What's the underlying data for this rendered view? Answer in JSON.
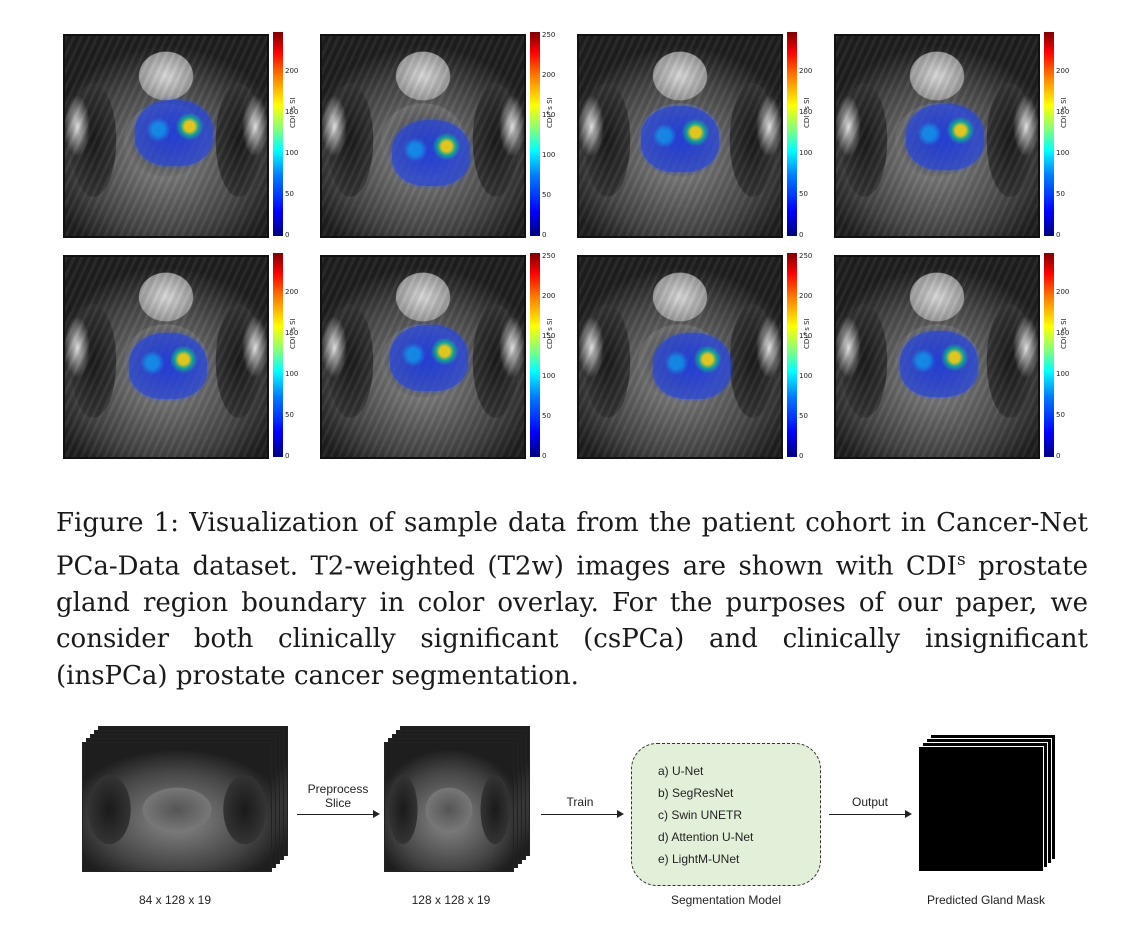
{
  "colorbar": {
    "label": "CDI^s SI",
    "gradient_colors": [
      "#00007f",
      "#0000ff",
      "#00ffff",
      "#ffff00",
      "#ff0000",
      "#7f0000"
    ]
  },
  "panels": [
    {
      "ticks": [
        "200",
        "150",
        "100",
        "50",
        "0"
      ]
    },
    {
      "ticks": [
        "250",
        "200",
        "150",
        "100",
        "50",
        "0"
      ]
    },
    {
      "ticks": [
        "200",
        "150",
        "100",
        "50",
        "0"
      ]
    },
    {
      "ticks": [
        "200",
        "150",
        "100",
        "50",
        "0"
      ]
    },
    {
      "ticks": [
        "200",
        "150",
        "100",
        "50",
        "0"
      ]
    },
    {
      "ticks": [
        "250",
        "200",
        "150",
        "100",
        "50",
        "0"
      ]
    },
    {
      "ticks": [
        "250",
        "200",
        "150",
        "100",
        "50",
        "0"
      ]
    },
    {
      "ticks": [
        "200",
        "150",
        "100",
        "50",
        "0"
      ]
    }
  ],
  "caption": {
    "prefix": "Figure 1: Visualization of sample data from the patient cohort in Cancer-Net PCa-Data dataset. T2-weighted (T2w) images are shown with CDI",
    "superscript": "s",
    "suffix": " prostate gland region boundary in color overlay. For the purposes of our paper, we consider both clinically significant (csPCa) and clinically insignificant (insPCa) prostate cancer segmentation."
  },
  "pipeline": {
    "input_dims": "84 x 128 x 19",
    "preprocess_label_1": "Preprocess",
    "preprocess_label_2": "Slice",
    "processed_dims": "128 x 128 x 19",
    "train_label": "Train",
    "model_title": "Segmentation Model",
    "models": [
      "a) U-Net",
      "b) SegResNet",
      "c) Swin UNETR",
      "d) Attention U-Net",
      "e) LightM-UNet"
    ],
    "output_label": "Output",
    "mask_label": "Predicted Gland Mask"
  }
}
